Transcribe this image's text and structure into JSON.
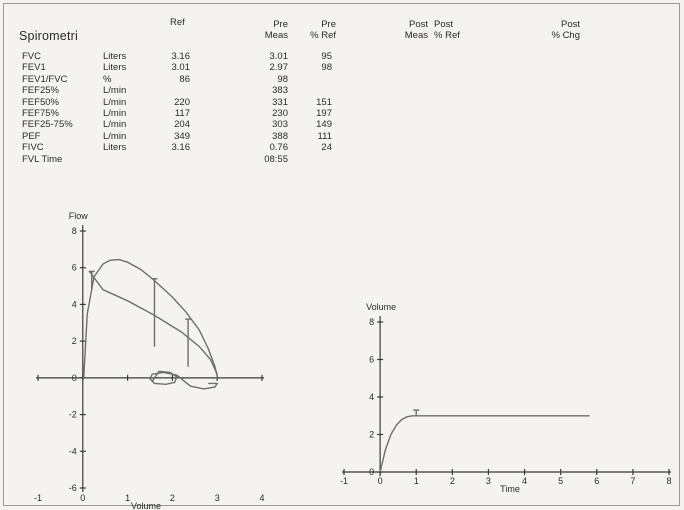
{
  "report": {
    "title": "Spirometri",
    "headers": {
      "ref": "Ref",
      "pre_meas": [
        "Pre",
        "Meas"
      ],
      "pre_pct_ref": [
        "Pre",
        "% Ref"
      ],
      "post_meas": [
        "Post",
        "Meas"
      ],
      "post_pct_ref": [
        "Post",
        "% Ref"
      ],
      "post_pct_chg": [
        "Post",
        "% Chg"
      ]
    },
    "rows": [
      {
        "name": "FVC",
        "unit": "Liters",
        "ref": "3.16",
        "pre_meas": "3.01",
        "pre_pct_ref": "95"
      },
      {
        "name": "FEV1",
        "unit": "Liters",
        "ref": "3.01",
        "pre_meas": "2.97",
        "pre_pct_ref": "98"
      },
      {
        "name": "FEV1/FVC",
        "unit": "%",
        "ref": "86",
        "pre_meas": "98",
        "pre_pct_ref": ""
      },
      {
        "name": "FEF25%",
        "unit": "L/min",
        "ref": "",
        "pre_meas": "383",
        "pre_pct_ref": ""
      },
      {
        "name": "FEF50%",
        "unit": "L/min",
        "ref": "220",
        "pre_meas": "331",
        "pre_pct_ref": "151"
      },
      {
        "name": "FEF75%",
        "unit": "L/min",
        "ref": "117",
        "pre_meas": "230",
        "pre_pct_ref": "197"
      },
      {
        "name": "FEF25-75%",
        "unit": "L/min",
        "ref": "204",
        "pre_meas": "303",
        "pre_pct_ref": "149"
      },
      {
        "name": "PEF",
        "unit": "L/min",
        "ref": "349",
        "pre_meas": "388",
        "pre_pct_ref": "111"
      },
      {
        "name": "FIVC",
        "unit": "Liters",
        "ref": "3.16",
        "pre_meas": "0.76",
        "pre_pct_ref": "24"
      },
      {
        "name": "FVL Time",
        "unit": "",
        "ref": "",
        "pre_meas": "08:55",
        "pre_pct_ref": ""
      }
    ]
  },
  "chart_data": [
    {
      "type": "line",
      "ylabel": "Flow",
      "xlabel": "Volume",
      "xlim": [
        -1,
        4
      ],
      "ylim": [
        -6,
        8
      ],
      "x_ticks": [
        -1,
        0,
        1,
        2,
        3,
        4
      ],
      "y_ticks": [
        8,
        6,
        4,
        2,
        0,
        -2,
        -4,
        -6
      ],
      "series": [
        {
          "x": [
            0.02,
            0.1,
            0.25,
            0.45,
            0.6,
            0.8,
            1.0,
            1.3,
            1.6,
            2.0,
            2.3,
            2.6,
            2.8,
            2.95,
            3.01
          ],
          "values": [
            0,
            3.5,
            5.5,
            6.2,
            6.4,
            6.45,
            6.3,
            5.9,
            5.3,
            4.4,
            3.6,
            2.6,
            1.6,
            0.6,
            0
          ]
        },
        {
          "x": [
            0.15,
            0.45,
            1.0,
            1.6,
            2.2,
            2.6,
            2.85,
            3.0
          ],
          "values": [
            5.8,
            4.8,
            4.2,
            3.4,
            2.5,
            1.7,
            1.0,
            0.2
          ]
        },
        {
          "x": [
            1.55,
            1.7,
            1.95,
            2.1,
            2.05,
            1.85,
            1.6,
            1.5,
            1.55,
            1.8,
            2.1,
            2.4,
            2.7,
            2.95,
            3.0,
            2.8
          ],
          "values": [
            -0.2,
            0.35,
            0.3,
            0.05,
            -0.25,
            -0.35,
            -0.3,
            -0.05,
            0.2,
            0.3,
            0.15,
            -0.45,
            -0.6,
            -0.5,
            -0.3,
            -0.3
          ]
        }
      ],
      "ref_markers": [
        {
          "x": 0.2,
          "y0": 4.8,
          "y1": 5.8
        },
        {
          "x": 1.6,
          "y0": 1.7,
          "y1": 5.4
        },
        {
          "x": 2.35,
          "y0": 0.6,
          "y1": 3.2
        }
      ],
      "grid": false
    },
    {
      "type": "line",
      "ylabel": "Volume",
      "xlabel": "Time",
      "xlim": [
        -1,
        8
      ],
      "ylim": [
        0,
        8
      ],
      "x_ticks": [
        -1,
        0,
        1,
        2,
        3,
        4,
        5,
        6,
        7,
        8
      ],
      "y_ticks": [
        8,
        6,
        4,
        2,
        0
      ],
      "series": [
        {
          "x": [
            0.0,
            0.05,
            0.15,
            0.3,
            0.45,
            0.6,
            0.75,
            0.9,
            1.1,
            1.5,
            2.0,
            3.0,
            4.0,
            5.0,
            5.8
          ],
          "values": [
            0,
            0.4,
            1.2,
            2.0,
            2.5,
            2.8,
            2.95,
            3.0,
            3.0,
            3.0,
            3.0,
            3.0,
            3.0,
            3.0,
            3.0
          ]
        }
      ],
      "ref_markers": [
        {
          "x": 1.0,
          "y0": 3.0,
          "y1": 3.3
        }
      ],
      "grid": false
    }
  ]
}
